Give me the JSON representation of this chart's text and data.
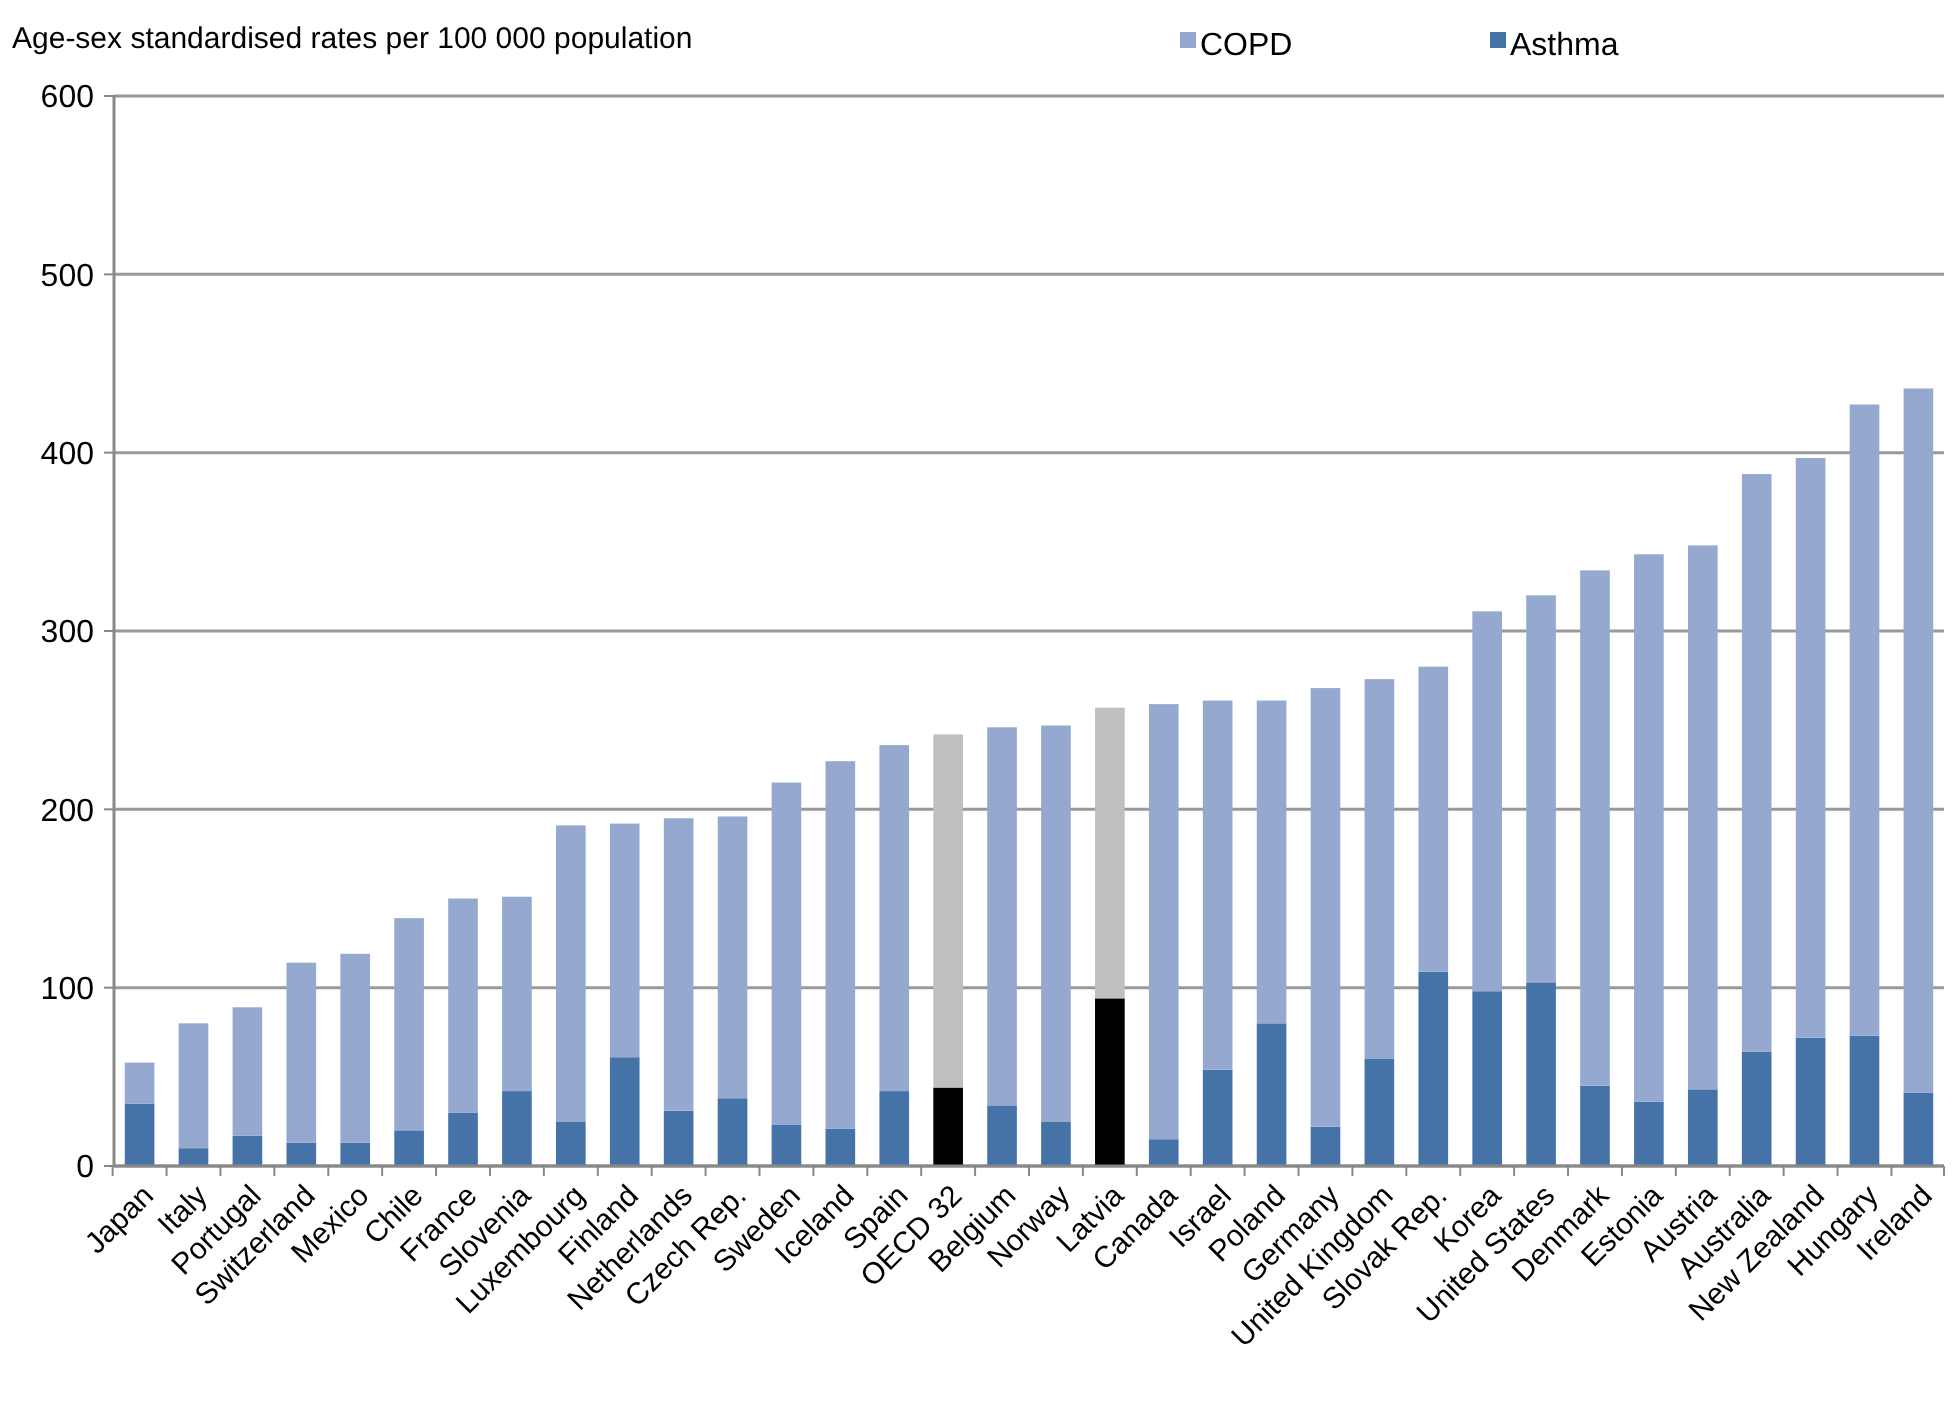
{
  "chart_data": {
    "type": "bar",
    "stacked": true,
    "ylabel": "Age-sex standardised rates per 100 000 population",
    "categories": [
      "Japan",
      "Italy",
      "Portugal",
      "Switzerland",
      "Mexico",
      "Chile",
      "France",
      "Slovenia",
      "Luxembourg",
      "Finland",
      "Netherlands",
      "Czech Rep.",
      "Sweden",
      "Iceland",
      "Spain",
      "OECD 32",
      "Belgium",
      "Norway",
      "Latvia",
      "Canada",
      "Israel",
      "Poland",
      "Germany",
      "United Kingdom",
      "Slovak Rep.",
      "Korea",
      "United States",
      "Denmark",
      "Estonia",
      "Austria",
      "Australia",
      "New Zealand",
      "Hungary",
      "Ireland"
    ],
    "series": [
      {
        "name": "Asthma",
        "color": "#4573a7",
        "values": [
          35,
          10,
          17,
          13,
          13,
          20,
          30,
          42,
          25,
          61,
          31,
          38,
          23,
          21,
          42,
          44,
          34,
          25,
          94,
          15,
          54,
          80,
          22,
          60,
          109,
          98,
          103,
          45,
          36,
          43,
          64,
          72,
          73,
          41
        ],
        "colors": [
          null,
          null,
          null,
          null,
          null,
          null,
          null,
          null,
          null,
          null,
          null,
          null,
          null,
          null,
          null,
          "#000000",
          null,
          null,
          "#000000",
          null,
          null,
          null,
          null,
          null,
          null,
          null,
          null,
          null,
          null,
          null,
          null,
          null,
          null,
          null
        ]
      },
      {
        "name": "COPD",
        "color": "#95a9d0",
        "values": [
          23,
          70,
          72,
          101,
          106,
          119,
          120,
          109,
          166,
          131,
          164,
          158,
          192,
          206,
          194,
          198,
          212,
          222,
          163,
          244,
          207,
          181,
          246,
          213,
          171,
          213,
          217,
          289,
          307,
          305,
          324,
          325,
          354,
          395
        ],
        "colors": [
          null,
          null,
          null,
          null,
          null,
          null,
          null,
          null,
          null,
          null,
          null,
          null,
          null,
          null,
          null,
          "#bfbfbf",
          null,
          null,
          "#bfbfbf",
          null,
          null,
          null,
          null,
          null,
          null,
          null,
          null,
          null,
          null,
          null,
          null,
          null,
          null,
          null
        ]
      }
    ],
    "ylim": [
      0,
      600
    ],
    "yticks": [
      0,
      100,
      200,
      300,
      400,
      500,
      600
    ],
    "grid": "y",
    "legend": "top"
  }
}
